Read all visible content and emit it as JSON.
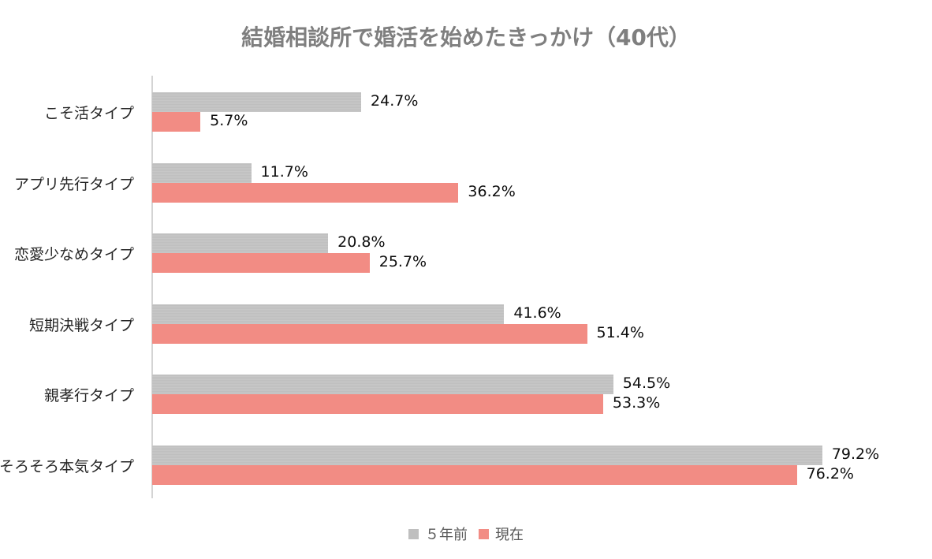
{
  "chart_data": {
    "type": "bar",
    "orientation": "horizontal",
    "title": "結婚相談所で婚活を始めたきっかけ（40代）",
    "categories": [
      "こそ活タイプ",
      "アプリ先行タイプ",
      "恋愛少なめタイプ",
      "短期決戦タイプ",
      "親孝行タイプ",
      "そろそろ本気タイプ"
    ],
    "series": [
      {
        "name": "5年前",
        "color": "#bfbfbf",
        "values": [
          24.7,
          11.7,
          20.8,
          41.6,
          54.5,
          79.2
        ],
        "labels": [
          "24.7%",
          "11.7%",
          "20.8%",
          "41.6%",
          "54.5%",
          "79.2%"
        ]
      },
      {
        "name": "現在",
        "color": "#f28c84",
        "values": [
          5.7,
          36.2,
          25.7,
          51.4,
          53.3,
          76.2
        ],
        "labels": [
          "5.7%",
          "36.2%",
          "25.7%",
          "51.4%",
          "53.3%",
          "76.2%"
        ]
      }
    ],
    "xlabel": "",
    "ylabel": "",
    "xlim": [
      0,
      100
    ],
    "grid": false,
    "data_labels": true,
    "legend_position": "bottom"
  },
  "legend": {
    "items": [
      {
        "label": "５年前",
        "color": "#bfbfbf"
      },
      {
        "label": "現在",
        "color": "#f28c84"
      }
    ]
  }
}
